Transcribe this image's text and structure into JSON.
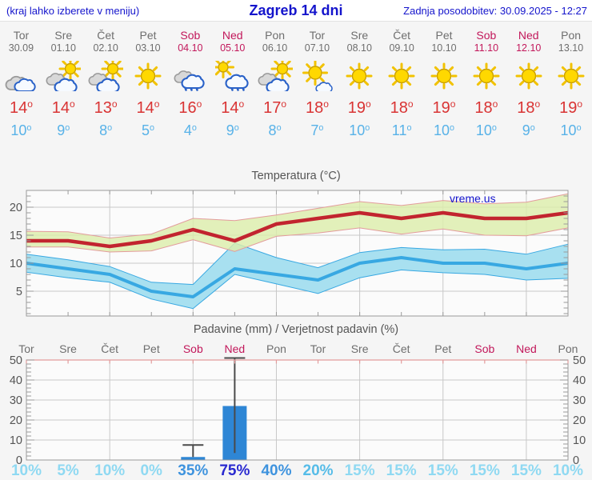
{
  "header": {
    "hint": "(kraj lahko izberete v meniju)",
    "title": "Zagreb 14 dni",
    "updated": "Zadnja posodobitev: 30.09.2025 - 12:27"
  },
  "watermark": "vreme.us",
  "forecast": {
    "days": [
      {
        "name": "Tor",
        "date": "30.09",
        "weekend": false,
        "icon": "cloudy",
        "high": 14,
        "low": 10
      },
      {
        "name": "Sre",
        "date": "01.10",
        "weekend": false,
        "icon": "partly-sunny",
        "high": 14,
        "low": 9
      },
      {
        "name": "Čet",
        "date": "02.10",
        "weekend": false,
        "icon": "partly-sunny",
        "high": 13,
        "low": 8
      },
      {
        "name": "Pet",
        "date": "03.10",
        "weekend": false,
        "icon": "sunny",
        "high": 14,
        "low": 5
      },
      {
        "name": "Sob",
        "date": "04.10",
        "weekend": true,
        "icon": "rain",
        "high": 16,
        "low": 4
      },
      {
        "name": "Ned",
        "date": "05.10",
        "weekend": true,
        "icon": "showers-sun",
        "high": 14,
        "low": 9
      },
      {
        "name": "Pon",
        "date": "06.10",
        "weekend": false,
        "icon": "partly-sunny",
        "high": 17,
        "low": 8
      },
      {
        "name": "Tor",
        "date": "07.10",
        "weekend": false,
        "icon": "mostly-sunny",
        "high": 18,
        "low": 7
      },
      {
        "name": "Sre",
        "date": "08.10",
        "weekend": false,
        "icon": "sunny",
        "high": 19,
        "low": 10
      },
      {
        "name": "Čet",
        "date": "09.10",
        "weekend": false,
        "icon": "sunny",
        "high": 18,
        "low": 11
      },
      {
        "name": "Pet",
        "date": "10.10",
        "weekend": false,
        "icon": "sunny",
        "high": 19,
        "low": 10
      },
      {
        "name": "Sob",
        "date": "11.10",
        "weekend": true,
        "icon": "sunny",
        "high": 18,
        "low": 10
      },
      {
        "name": "Ned",
        "date": "12.10",
        "weekend": true,
        "icon": "sunny",
        "high": 18,
        "low": 9
      },
      {
        "name": "Pon",
        "date": "13.10",
        "weekend": false,
        "icon": "sunny",
        "high": 19,
        "low": 10
      }
    ]
  },
  "chart_data": [
    {
      "type": "line",
      "title": "Temperatura (°C)",
      "x": [
        "30.09",
        "01.10",
        "02.10",
        "03.10",
        "04.10",
        "05.10",
        "06.10",
        "07.10",
        "08.10",
        "09.10",
        "10.10",
        "11.10",
        "12.10",
        "13.10"
      ],
      "ylim": [
        0,
        23
      ],
      "yticks": [
        5,
        10,
        15,
        20
      ],
      "grid": true,
      "watermark": "vreme.us",
      "series": [
        {
          "name": "max_temp",
          "values": [
            14,
            14,
            13,
            14,
            16,
            14,
            17,
            18,
            19,
            18,
            19,
            18,
            18,
            19
          ]
        },
        {
          "name": "min_temp",
          "values": [
            10,
            9,
            8,
            5,
            4,
            9,
            8,
            7,
            10,
            11,
            10,
            10,
            9,
            10
          ]
        },
        {
          "name": "max_band_upper",
          "values": [
            15.7,
            15.6,
            14.5,
            15.2,
            18.0,
            17.6,
            18.6,
            19.8,
            21.0,
            20.3,
            21.2,
            20.6,
            20.9,
            22.4
          ]
        },
        {
          "name": "max_band_lower",
          "values": [
            12.9,
            12.9,
            12.0,
            12.2,
            14.2,
            12.1,
            14.8,
            15.4,
            16.3,
            15.2,
            16.1,
            15.0,
            14.9,
            16.3
          ]
        },
        {
          "name": "min_band_upper",
          "values": [
            11.6,
            10.6,
            9.4,
            6.6,
            6.2,
            13.6,
            11.0,
            9.2,
            11.9,
            12.8,
            12.4,
            12.5,
            11.6,
            13.4
          ]
        },
        {
          "name": "min_band_lower",
          "values": [
            8.4,
            7.4,
            6.6,
            3.6,
            1.9,
            8.0,
            6.3,
            4.6,
            7.4,
            8.8,
            8.3,
            8.0,
            7.0,
            7.3
          ]
        }
      ]
    },
    {
      "type": "bar",
      "title": "Padavine (mm) / Verjetnost padavin (%)",
      "categories": [
        "Tor",
        "Sre",
        "Čet",
        "Pet",
        "Sob",
        "Ned",
        "Pon",
        "Tor",
        "Sre",
        "Čet",
        "Pet",
        "Sob",
        "Ned",
        "Pon"
      ],
      "weekend_flags": [
        false,
        false,
        false,
        false,
        true,
        true,
        false,
        false,
        false,
        false,
        false,
        true,
        true,
        false
      ],
      "values": [
        0,
        0,
        0,
        0,
        1.5,
        27,
        0,
        0,
        0,
        0,
        0,
        0,
        0,
        0
      ],
      "whisker_low": [
        null,
        null,
        null,
        null,
        1.5,
        3.5,
        null,
        null,
        null,
        null,
        null,
        null,
        null,
        null
      ],
      "whisker_high": [
        null,
        null,
        null,
        null,
        7.5,
        51,
        null,
        null,
        null,
        null,
        null,
        null,
        null,
        null
      ],
      "probabilities": [
        10,
        5,
        10,
        0,
        35,
        75,
        40,
        20,
        15,
        15,
        15,
        15,
        15,
        10
      ],
      "ylim": [
        0,
        52
      ],
      "yticks": [
        0,
        10,
        20,
        30,
        40,
        50
      ],
      "grid": true
    }
  ],
  "colors": {
    "accent_blue": "#1414cc",
    "weekday": "#6e6e6e",
    "weekend": "#c2185b",
    "temp_high": "#d93434",
    "temp_low": "#58b2e8",
    "max_line": "#c2242f",
    "max_band": "#dcedaa",
    "band_edge": "#e39c9c",
    "min_line": "#38a8e2",
    "min_band": "#a8e0f0",
    "bar_fill": "#2e86d5",
    "whisker": "#4a4a4a",
    "grid_line": "#c8c8c8",
    "plot_border": "#9a9a9a",
    "axis_text": "#555555",
    "prob_low": "#8fd9f2",
    "prob_mid_low": "#55bce8",
    "prob_mid": "#3e93de",
    "prob_high": "#2a2ad0"
  }
}
